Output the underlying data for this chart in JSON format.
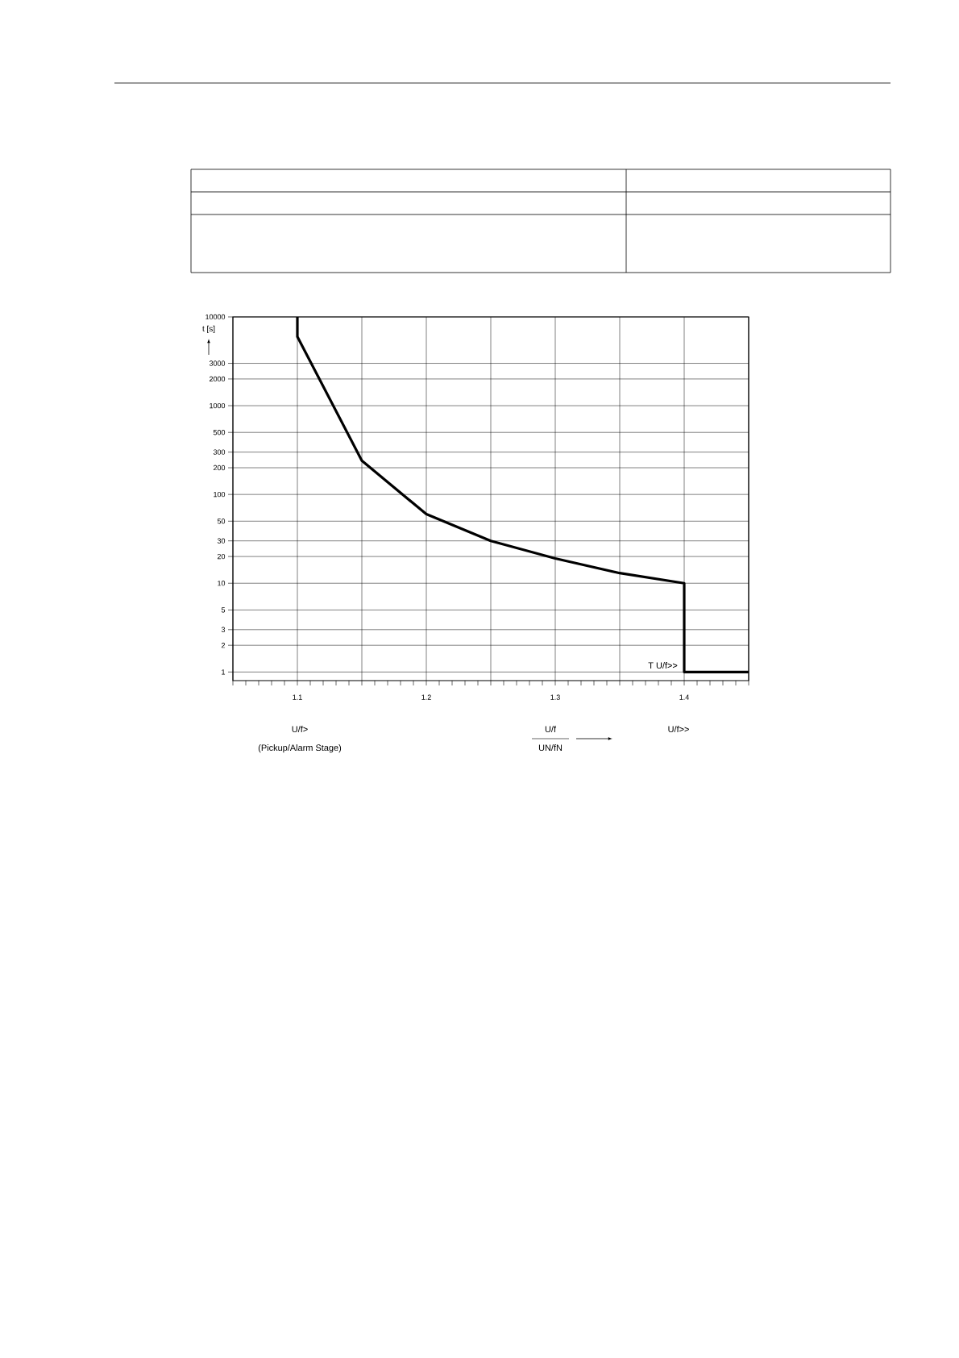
{
  "chart_data": {
    "type": "line",
    "xlabel": "U/f",
    "ylabel": "t [s]",
    "x": [
      1.1,
      1.1,
      1.15,
      1.2,
      1.25,
      1.3,
      1.35,
      1.4,
      1.4,
      1.45
    ],
    "values": [
      10000,
      6000,
      240,
      60,
      30,
      19,
      13,
      10,
      1,
      1
    ],
    "color": "#000000",
    "marker": "none",
    "line_style": "solid",
    "xlim": [
      1.05,
      1.45
    ],
    "xticks": [
      {
        "value": 1.05,
        "label": null
      },
      1.1,
      {
        "value": 1.15,
        "label": null
      },
      1.2,
      {
        "value": 1.25,
        "label": null
      },
      1.3,
      {
        "value": 1.35,
        "label": null
      },
      1.4,
      {
        "value": 1.45,
        "label": null
      }
    ],
    "ylim": [
      0.8,
      10000
    ],
    "yticks": [
      1,
      2,
      3,
      5,
      10,
      20,
      30,
      50,
      100,
      200,
      300,
      500,
      1000,
      2000,
      3000,
      10000
    ],
    "log": "y",
    "grid": true,
    "annotations": [
      {
        "text": "T U/f>>",
        "x": 1.4,
        "y": 1
      },
      "U/f>",
      "(Pickup/Alarm Stage)",
      "UN/fN",
      "U/f>>"
    ]
  }
}
